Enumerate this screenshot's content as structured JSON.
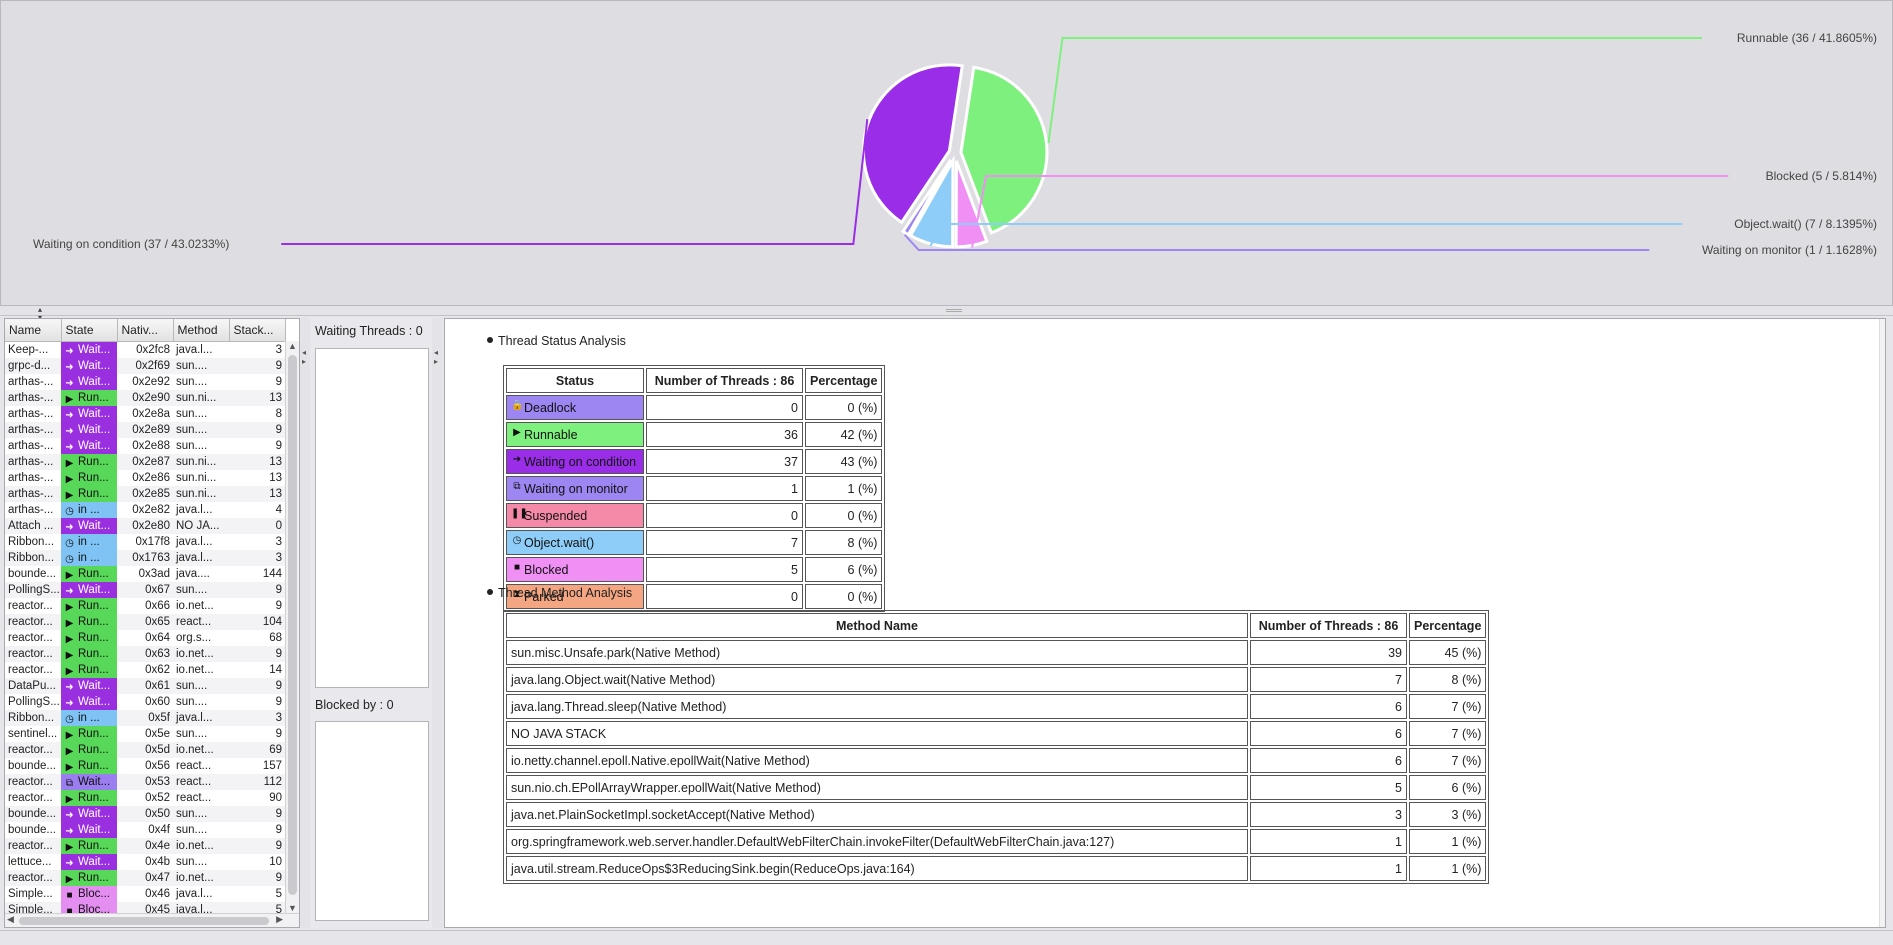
{
  "pie_chart": {
    "slices": [
      {
        "name": "Runnable",
        "threads": 36,
        "percent": 41.8605,
        "label": "Runnable (36  / 41.8605%)",
        "color": "#7ef07e"
      },
      {
        "name": "Blocked",
        "threads": 5,
        "percent": 5.814,
        "label": "Blocked (5  / 5.814%)",
        "color": "#f08ff4"
      },
      {
        "name": "Object.wait()",
        "threads": 7,
        "percent": 8.1395,
        "label": "Object.wait() (7  / 8.1395%)",
        "color": "#8ecdf8"
      },
      {
        "name": "Waiting on monitor",
        "threads": 1,
        "percent": 1.1628,
        "label": "Waiting on monitor (1  / 1.1628%)",
        "color": "#9d85f2"
      },
      {
        "name": "Waiting on condition",
        "threads": 37,
        "percent": 43.0233,
        "label": "Waiting on condition (37  / 43.0233%)",
        "color": "#9a2ee8"
      }
    ]
  },
  "thread_table": {
    "columns": [
      "Name",
      "State",
      "Nativ...",
      "Method",
      "Stack..."
    ],
    "rows": [
      {
        "name": "Keep-...",
        "state": "Wait...",
        "kind": "wait",
        "nid": "0x2fc8",
        "method": "java.l...",
        "stack": "3"
      },
      {
        "name": "grpc-d...",
        "state": "Wait...",
        "kind": "wait",
        "nid": "0x2f69",
        "method": "sun....",
        "stack": "9"
      },
      {
        "name": "arthas-...",
        "state": "Wait...",
        "kind": "wait",
        "nid": "0x2e92",
        "method": "sun....",
        "stack": "9"
      },
      {
        "name": "arthas-...",
        "state": "Run...",
        "kind": "run",
        "nid": "0x2e90",
        "method": "sun.ni...",
        "stack": "13"
      },
      {
        "name": "arthas-...",
        "state": "Wait...",
        "kind": "wait",
        "nid": "0x2e8a",
        "method": "sun....",
        "stack": "8"
      },
      {
        "name": "arthas-...",
        "state": "Wait...",
        "kind": "wait",
        "nid": "0x2e89",
        "method": "sun....",
        "stack": "9"
      },
      {
        "name": "arthas-...",
        "state": "Wait...",
        "kind": "wait",
        "nid": "0x2e88",
        "method": "sun....",
        "stack": "9"
      },
      {
        "name": "arthas-...",
        "state": "Run...",
        "kind": "run",
        "nid": "0x2e87",
        "method": "sun.ni...",
        "stack": "13"
      },
      {
        "name": "arthas-...",
        "state": "Run...",
        "kind": "run",
        "nid": "0x2e86",
        "method": "sun.ni...",
        "stack": "13"
      },
      {
        "name": "arthas-...",
        "state": "Run...",
        "kind": "run",
        "nid": "0x2e85",
        "method": "sun.ni...",
        "stack": "13"
      },
      {
        "name": "arthas-...",
        "state": "in ...",
        "kind": "obj",
        "nid": "0x2e82",
        "method": "java.l...",
        "stack": "4"
      },
      {
        "name": "Attach ...",
        "state": "Wait...",
        "kind": "wait",
        "nid": "0x2e80",
        "method": "NO JA...",
        "stack": "0"
      },
      {
        "name": "Ribbon...",
        "state": "in ...",
        "kind": "obj",
        "nid": "0x17f8",
        "method": "java.l...",
        "stack": "3"
      },
      {
        "name": "Ribbon...",
        "state": "in ...",
        "kind": "obj",
        "nid": "0x1763",
        "method": "java.l...",
        "stack": "3"
      },
      {
        "name": "bounde...",
        "state": "Run...",
        "kind": "run",
        "nid": "0x3ad",
        "method": "java....",
        "stack": "144"
      },
      {
        "name": "PollingS...",
        "state": "Wait...",
        "kind": "wait",
        "nid": "0x67",
        "method": "sun....",
        "stack": "9"
      },
      {
        "name": "reactor...",
        "state": "Run...",
        "kind": "run",
        "nid": "0x66",
        "method": "io.net...",
        "stack": "9"
      },
      {
        "name": "reactor...",
        "state": "Run...",
        "kind": "run",
        "nid": "0x65",
        "method": "react...",
        "stack": "104"
      },
      {
        "name": "reactor...",
        "state": "Run...",
        "kind": "run",
        "nid": "0x64",
        "method": "org.s...",
        "stack": "68"
      },
      {
        "name": "reactor...",
        "state": "Run...",
        "kind": "run",
        "nid": "0x63",
        "method": "io.net...",
        "stack": "9"
      },
      {
        "name": "reactor...",
        "state": "Run...",
        "kind": "run",
        "nid": "0x62",
        "method": "io.net...",
        "stack": "14"
      },
      {
        "name": "DataPu...",
        "state": "Wait...",
        "kind": "wait",
        "nid": "0x61",
        "method": "sun....",
        "stack": "9"
      },
      {
        "name": "PollingS...",
        "state": "Wait...",
        "kind": "wait",
        "nid": "0x60",
        "method": "sun....",
        "stack": "9"
      },
      {
        "name": "Ribbon...",
        "state": "in ...",
        "kind": "obj",
        "nid": "0x5f",
        "method": "java.l...",
        "stack": "3"
      },
      {
        "name": "sentinel...",
        "state": "Run...",
        "kind": "run",
        "nid": "0x5e",
        "method": "sun....",
        "stack": "9"
      },
      {
        "name": "reactor...",
        "state": "Run...",
        "kind": "run",
        "nid": "0x5d",
        "method": "io.net...",
        "stack": "69"
      },
      {
        "name": "bounde...",
        "state": "Run...",
        "kind": "run",
        "nid": "0x56",
        "method": "react...",
        "stack": "157"
      },
      {
        "name": "reactor...",
        "state": "Wait...",
        "kind": "mon",
        "nid": "0x53",
        "method": "react...",
        "stack": "112"
      },
      {
        "name": "reactor...",
        "state": "Run...",
        "kind": "run",
        "nid": "0x52",
        "method": "react...",
        "stack": "90"
      },
      {
        "name": "bounde...",
        "state": "Wait...",
        "kind": "wait",
        "nid": "0x50",
        "method": "sun....",
        "stack": "9"
      },
      {
        "name": "bounde...",
        "state": "Wait...",
        "kind": "wait",
        "nid": "0x4f",
        "method": "sun....",
        "stack": "9"
      },
      {
        "name": "reactor...",
        "state": "Run...",
        "kind": "run",
        "nid": "0x4e",
        "method": "io.net...",
        "stack": "9"
      },
      {
        "name": "lettuce...",
        "state": "Wait...",
        "kind": "wait",
        "nid": "0x4b",
        "method": "sun....",
        "stack": "10"
      },
      {
        "name": "reactor...",
        "state": "Run...",
        "kind": "run",
        "nid": "0x47",
        "method": "io.net...",
        "stack": "9"
      },
      {
        "name": "Simple...",
        "state": "Bloc...",
        "kind": "block",
        "nid": "0x46",
        "method": "java.l...",
        "stack": "5"
      },
      {
        "name": "Simple...",
        "state": "Bloc...",
        "kind": "block",
        "nid": "0x45",
        "method": "java.l...",
        "stack": "5"
      }
    ]
  },
  "side_panels": {
    "waiting_threads_label": "Waiting Threads : 0",
    "blocked_by_label": "Blocked by : 0"
  },
  "status_analysis": {
    "heading": "Thread Status Analysis",
    "col_status": "Status",
    "col_count": "Number of Threads : 86",
    "col_pct": "Percentage",
    "rows": [
      {
        "status": "Deadlock",
        "count": "0",
        "pct": "0 (%)",
        "color": "#9d85f2",
        "icon": "lock-icon",
        "glyph": "🔒"
      },
      {
        "status": "Runnable",
        "count": "36",
        "pct": "42 (%)",
        "color": "#7ef07e",
        "icon": "play-icon",
        "glyph": "▶"
      },
      {
        "status": "Waiting on condition",
        "count": "37",
        "pct": "43 (%)",
        "color": "#9a2ee8",
        "icon": "arrow-icon",
        "glyph": "➜"
      },
      {
        "status": "Waiting on monitor",
        "count": "1",
        "pct": "1 (%)",
        "color": "#9d85f2",
        "icon": "monitor-icon",
        "glyph": "⧉"
      },
      {
        "status": "Suspended",
        "count": "0",
        "pct": "0 (%)",
        "color": "#f48aa8",
        "icon": "pause-icon",
        "glyph": "❚❚"
      },
      {
        "status": "Object.wait()",
        "count": "7",
        "pct": "8 (%)",
        "color": "#8ecdf8",
        "icon": "clock-icon",
        "glyph": "◷"
      },
      {
        "status": "Blocked",
        "count": "5",
        "pct": "6 (%)",
        "color": "#f08ff4",
        "icon": "block-icon",
        "glyph": "■"
      },
      {
        "status": "Parked",
        "count": "0",
        "pct": "0 (%)",
        "color": "#f4a582",
        "icon": "hourglass-icon",
        "glyph": "⧗"
      }
    ]
  },
  "method_analysis": {
    "heading": "Thread Method Analysis",
    "col_method": "Method Name",
    "col_count": "Number of Threads : 86",
    "col_pct": "Percentage",
    "rows": [
      {
        "method": "sun.misc.Unsafe.park(Native Method)",
        "count": "39",
        "pct": "45 (%)"
      },
      {
        "method": "java.lang.Object.wait(Native Method)",
        "count": "7",
        "pct": "8 (%)"
      },
      {
        "method": "java.lang.Thread.sleep(Native Method)",
        "count": "6",
        "pct": "7 (%)"
      },
      {
        "method": "NO JAVA STACK",
        "count": "6",
        "pct": "7 (%)"
      },
      {
        "method": "io.netty.channel.epoll.Native.epollWait(Native Method)",
        "count": "6",
        "pct": "7 (%)"
      },
      {
        "method": "sun.nio.ch.EPollArrayWrapper.epollWait(Native Method)",
        "count": "5",
        "pct": "6 (%)"
      },
      {
        "method": "java.net.PlainSocketImpl.socketAccept(Native Method)",
        "count": "3",
        "pct": "3 (%)"
      },
      {
        "method": "org.springframework.web.server.handler.DefaultWebFilterChain.invokeFilter(DefaultWebFilterChain.java:127)",
        "count": "1",
        "pct": "1 (%)"
      },
      {
        "method": "java.util.stream.ReduceOps$3ReducingSink.begin(ReduceOps.java:164)",
        "count": "1",
        "pct": "1 (%)"
      }
    ]
  }
}
